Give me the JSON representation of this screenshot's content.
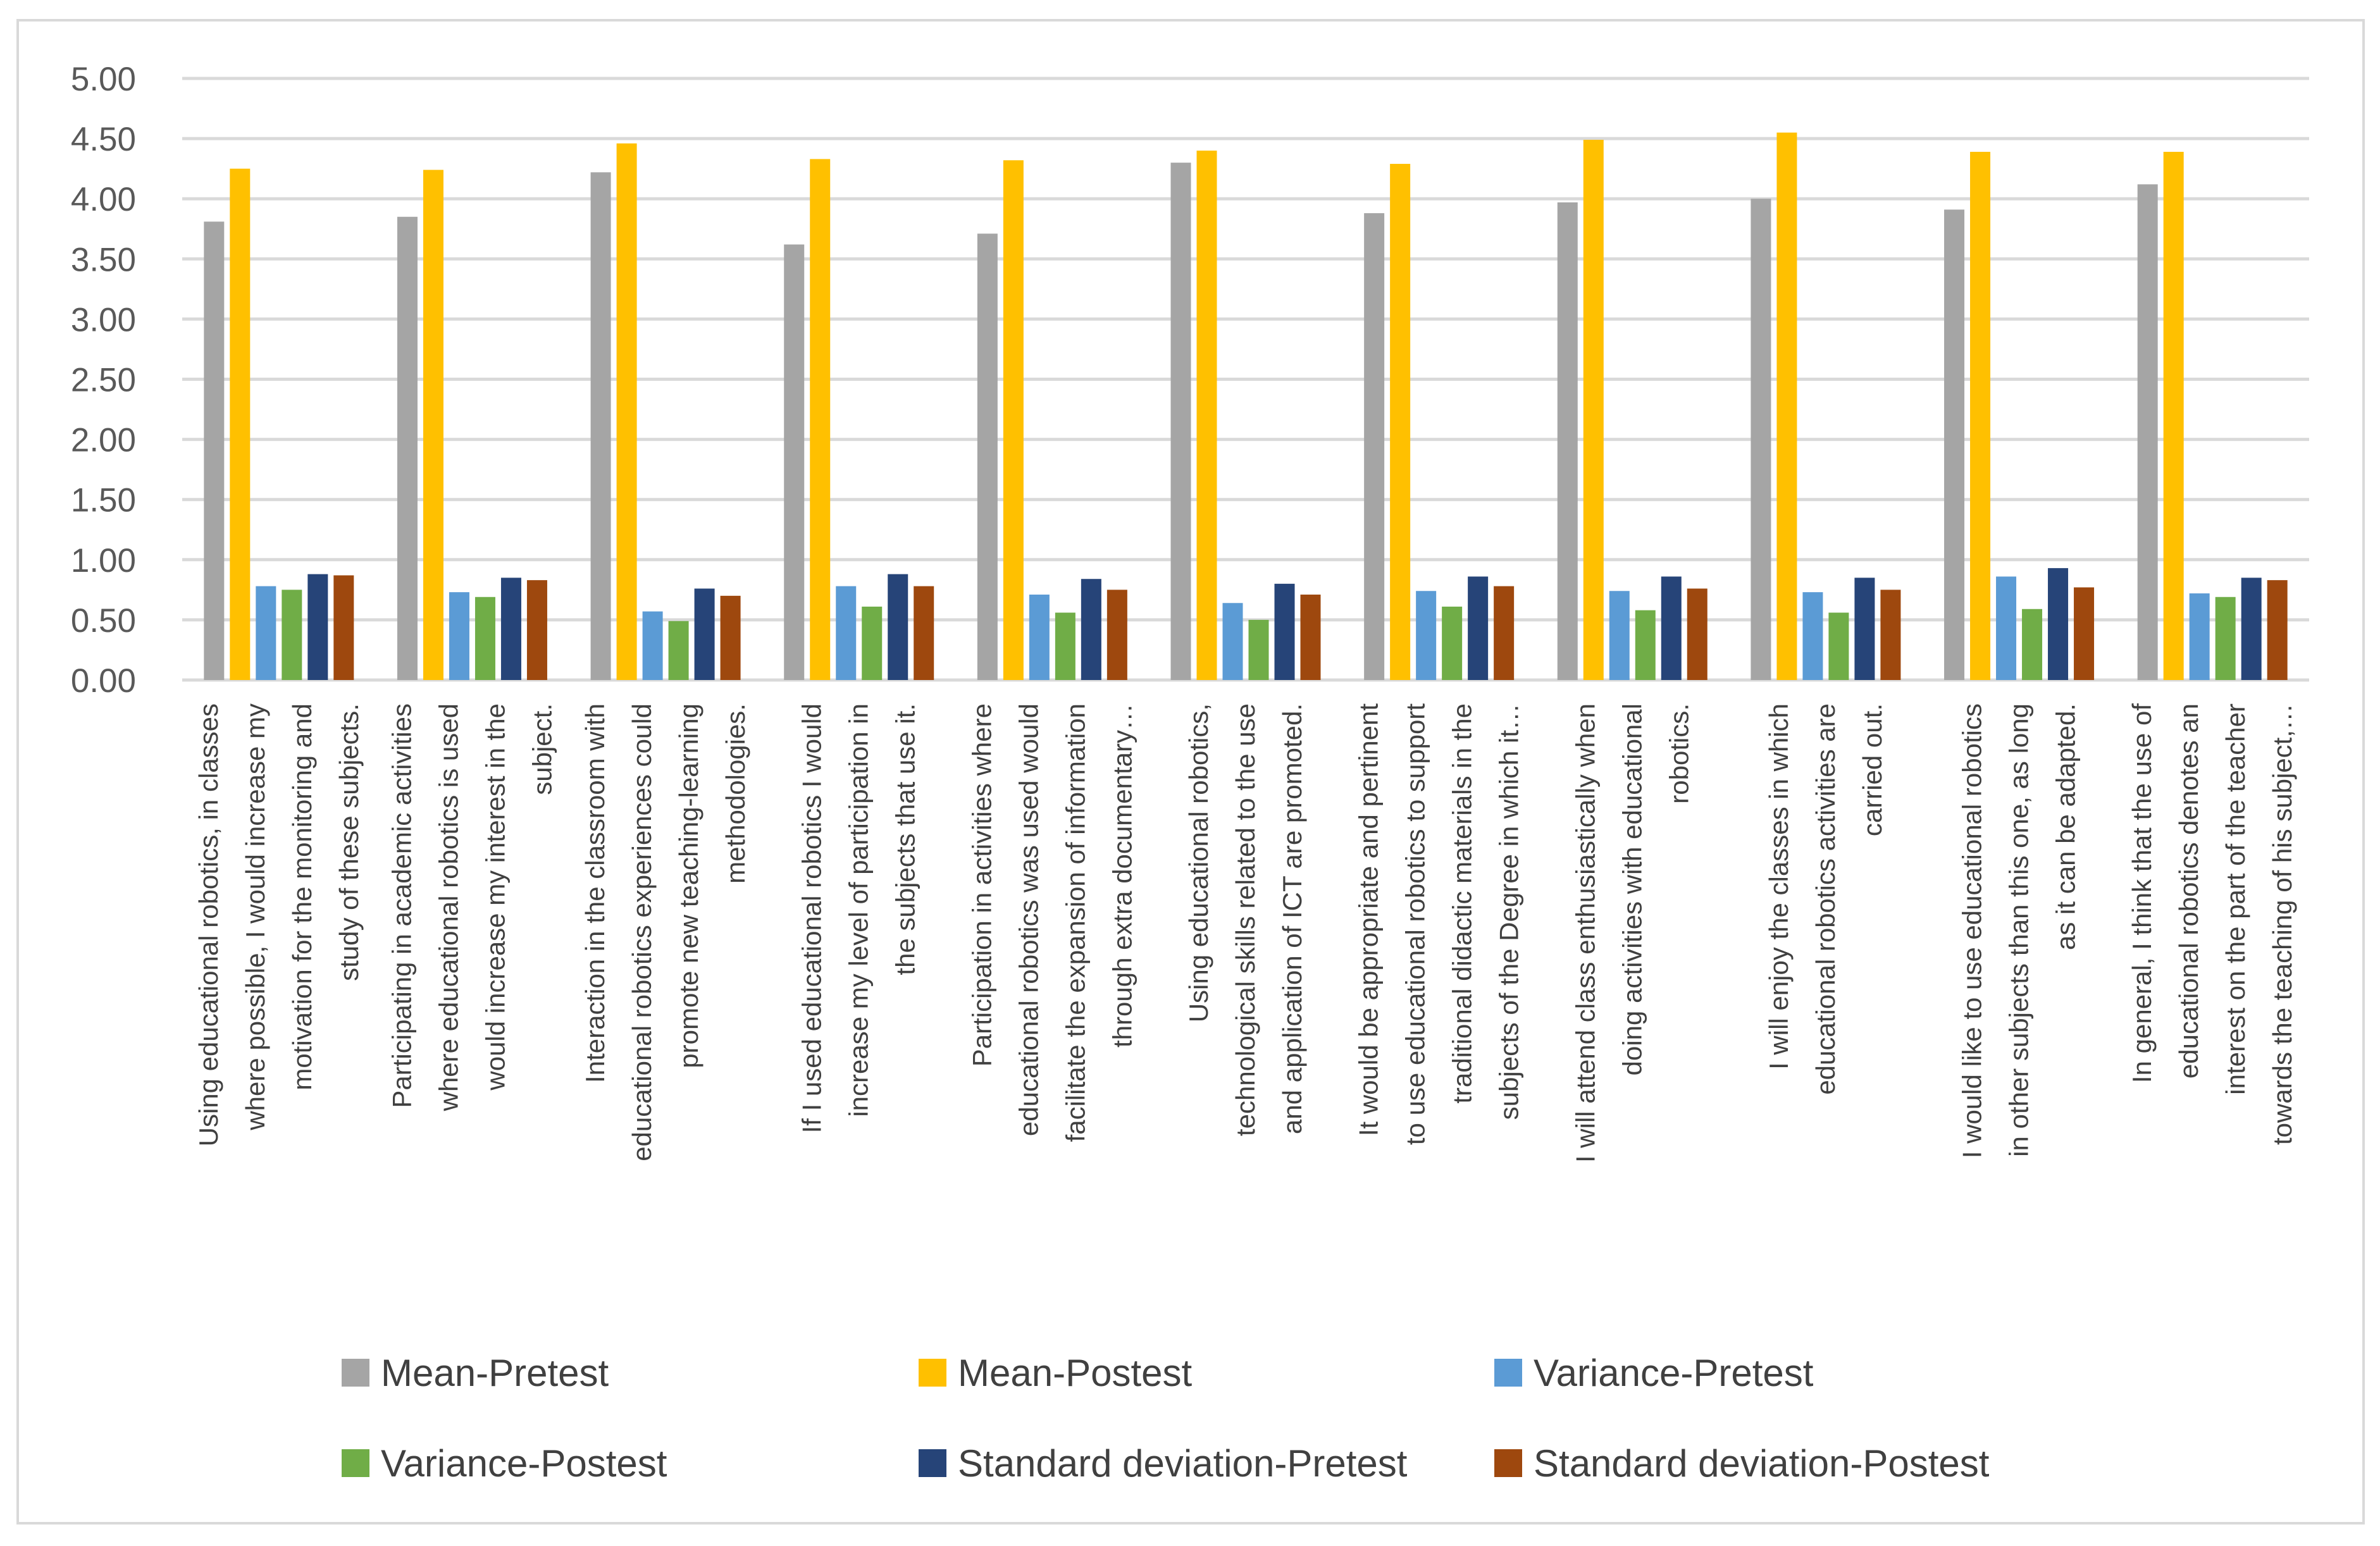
{
  "chart_data": {
    "type": "bar",
    "title": "",
    "xlabel": "",
    "ylabel": "",
    "ylim": [
      0,
      5
    ],
    "yticks": [
      "0.00",
      "0.50",
      "1.00",
      "1.50",
      "2.00",
      "2.50",
      "3.00",
      "3.50",
      "4.00",
      "4.50",
      "5.00"
    ],
    "grid": true,
    "legend_position": "bottom",
    "categories": [
      [
        "Using educational robotics, in classes",
        "where possible, I would increase my",
        "motivation for the monitoring and",
        "study of these subjects."
      ],
      [
        "Participating in academic activities",
        "where educational robotics is used",
        "would increase my interest in the",
        "subject."
      ],
      [
        "Interaction in the classroom with",
        "educational robotics experiences could",
        "promote new teaching-learning",
        "methodologies."
      ],
      [
        "If I used educational robotics I would",
        "increase my level of participation in",
        "the subjects that use it."
      ],
      [
        "Participation in activities where",
        "educational robotics was used would",
        "facilitate the expansion of information",
        "through extra documentary…"
      ],
      [
        "Using educational robotics,",
        "technological skills related to the use",
        "and application of ICT are promoted."
      ],
      [
        "It would be appropriate and pertinent",
        "to use educational robotics to support",
        "traditional didactic materials in the",
        "subjects of the Degree in which it…"
      ],
      [
        "I will attend class enthusiastically when",
        "doing activities with educational",
        "robotics."
      ],
      [
        "I will enjoy the classes in which",
        "educational robotics activities are",
        "carried out."
      ],
      [
        "I would like to use educational robotics",
        "in other subjects than this one, as long",
        "as it can be adapted."
      ],
      [
        "In general, I think that the use of",
        "educational robotics denotes an",
        "interest on the part of the teacher",
        "towards the teaching of his subject,…"
      ]
    ],
    "series": [
      {
        "name": "Mean-Pretest",
        "color": "#a5a5a5",
        "values": [
          3.81,
          3.85,
          4.22,
          3.62,
          3.71,
          4.3,
          3.88,
          3.97,
          4.0,
          3.91,
          4.12
        ]
      },
      {
        "name": "Mean-Postest",
        "color": "#ffc000",
        "values": [
          4.25,
          4.24,
          4.46,
          4.33,
          4.32,
          4.4,
          4.29,
          4.49,
          4.55,
          4.39,
          4.39
        ]
      },
      {
        "name": "Variance-Pretest",
        "color": "#5b9bd5",
        "values": [
          0.78,
          0.73,
          0.57,
          0.78,
          0.71,
          0.64,
          0.74,
          0.74,
          0.73,
          0.86,
          0.72
        ]
      },
      {
        "name": "Variance-Postest",
        "color": "#70ad47",
        "values": [
          0.75,
          0.69,
          0.49,
          0.61,
          0.56,
          0.5,
          0.61,
          0.58,
          0.56,
          0.59,
          0.69
        ]
      },
      {
        "name": "Standard deviation-Pretest",
        "color": "#264478",
        "values": [
          0.88,
          0.85,
          0.76,
          0.88,
          0.84,
          0.8,
          0.86,
          0.86,
          0.85,
          0.93,
          0.85
        ]
      },
      {
        "name": "Standard deviation-Postest",
        "color": "#9e480e",
        "values": [
          0.87,
          0.83,
          0.7,
          0.78,
          0.75,
          0.71,
          0.78,
          0.76,
          0.75,
          0.77,
          0.83
        ]
      }
    ]
  }
}
